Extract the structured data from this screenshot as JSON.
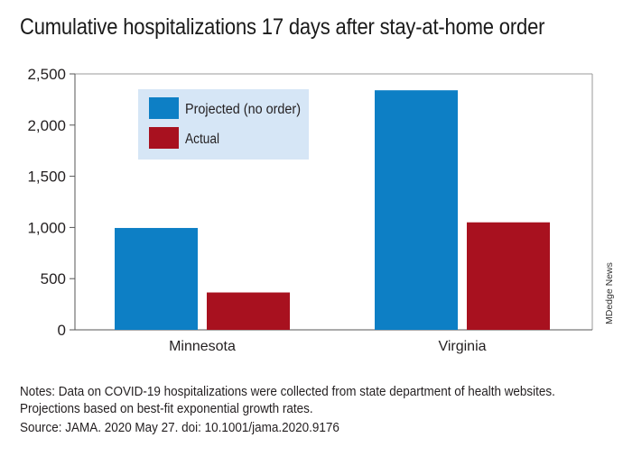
{
  "title": "Cumulative hospitalizations 17 days after stay-at-home order",
  "chart_data": {
    "type": "bar",
    "categories": [
      "Minnesota",
      "Virginia"
    ],
    "series": [
      {
        "name": "Projected (no order)",
        "values": [
          995,
          2340
        ],
        "color": "#0d7fc5"
      },
      {
        "name": "Actual",
        "values": [
          365,
          1050
        ],
        "color": "#a8111f"
      }
    ],
    "ylim": [
      0,
      2500
    ],
    "yticks": [
      0,
      500,
      1000,
      1500,
      2000,
      2500
    ],
    "ytick_labels": [
      "0",
      "500",
      "1,000",
      "1,500",
      "2,000",
      "2,500"
    ],
    "grid": false,
    "legend_position": "top-left",
    "legend_bg": "#d6e6f6"
  },
  "notes": {
    "label": "Notes:",
    "text": " Data on COVID-19 hospitalizations were collected from state department of health websites. Projections based on best-fit exponential growth rates."
  },
  "source": {
    "label": "Source:",
    "text": " JAMA. 2020 May 27. doi: 10.1001/jama.2020.9176"
  },
  "credit": "MDedge News"
}
